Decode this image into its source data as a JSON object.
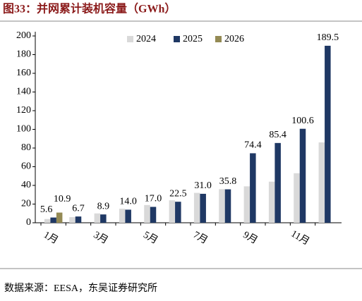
{
  "chart_data": {
    "type": "bar",
    "title": "图33：并网累计装机容量（GWh）",
    "source": "数据来源：EESA，东吴证券研究所",
    "categories": [
      "1月",
      null,
      "3月",
      null,
      "5月",
      null,
      "7月",
      null,
      "9月",
      null,
      "11月",
      null
    ],
    "series": [
      {
        "name": "2024",
        "color": "#d9d9d9",
        "values": [
          4,
          6,
          10,
          15,
          19,
          24,
          32,
          36,
          39,
          44,
          53,
          86
        ]
      },
      {
        "name": "2025",
        "color": "#1f3864",
        "values": [
          5.6,
          6.7,
          8.9,
          14.0,
          17.0,
          22.5,
          31.0,
          35.8,
          74.4,
          85.4,
          100.6,
          189.5
        ],
        "value_labels": [
          "5.6",
          "6.7",
          "8.9",
          "14.0",
          "17.0",
          "22.5",
          "31.0",
          "35.8",
          "74.4",
          "85.4",
          "100.6",
          "189.5"
        ]
      },
      {
        "name": "2026",
        "color": "#948a54",
        "values": [
          10.9,
          null,
          null,
          null,
          null,
          null,
          null,
          null,
          null,
          null,
          null,
          null
        ],
        "value_labels": [
          "10.9",
          null,
          null,
          null,
          null,
          null,
          null,
          null,
          null,
          null,
          null,
          null
        ]
      }
    ],
    "ylim": [
      0,
      200
    ],
    "yticks": [
      0,
      20,
      40,
      60,
      80,
      100,
      120,
      140,
      160,
      180,
      200
    ],
    "legend": "top"
  }
}
